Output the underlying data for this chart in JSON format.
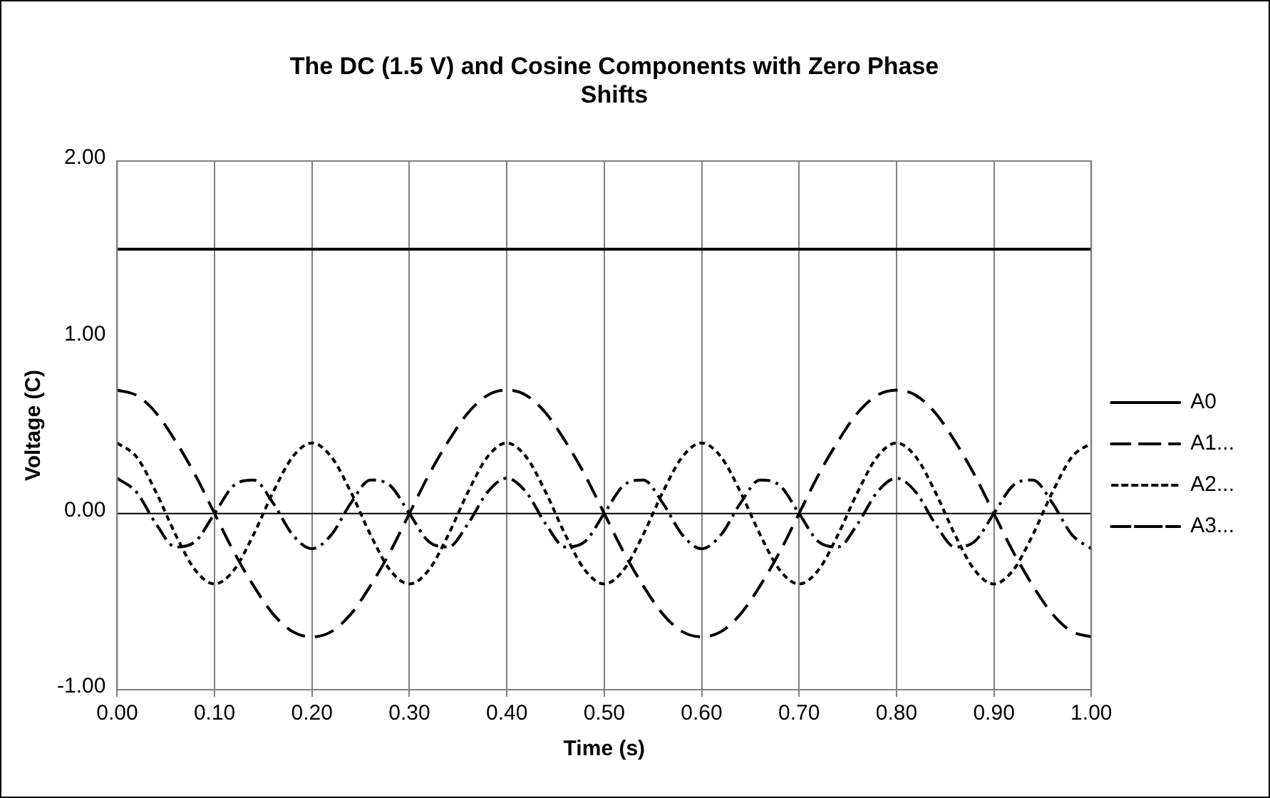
{
  "chart_data": {
    "type": "line",
    "title": "The DC (1.5 V) and Cosine Components with Zero Phase Shifts",
    "xlabel": "Time (s)",
    "ylabel": "Voltage (C)",
    "x": [
      0,
      0.02,
      0.04,
      0.06,
      0.08,
      0.1,
      0.12,
      0.14,
      0.16,
      0.18,
      0.2,
      0.22,
      0.24,
      0.26,
      0.28,
      0.3,
      0.32,
      0.34,
      0.36,
      0.38,
      0.4,
      0.42,
      0.44,
      0.46,
      0.48,
      0.5,
      0.52,
      0.54,
      0.56,
      0.58,
      0.6,
      0.62,
      0.64,
      0.66,
      0.68,
      0.7,
      0.72,
      0.74,
      0.76,
      0.78,
      0.8,
      0.82,
      0.84,
      0.86,
      0.88,
      0.9,
      0.92,
      0.94,
      0.96,
      0.98,
      1
    ],
    "series": [
      {
        "name": "A0",
        "color": "#000000",
        "line_style": "solid",
        "values": [
          1.5,
          1.5,
          1.5,
          1.5,
          1.5,
          1.5,
          1.5,
          1.5,
          1.5,
          1.5,
          1.5,
          1.5,
          1.5,
          1.5,
          1.5,
          1.5,
          1.5,
          1.5,
          1.5,
          1.5,
          1.5,
          1.5,
          1.5,
          1.5,
          1.5,
          1.5,
          1.5,
          1.5,
          1.5,
          1.5,
          1.5,
          1.5,
          1.5,
          1.5,
          1.5,
          1.5,
          1.5,
          1.5,
          1.5,
          1.5,
          1.5,
          1.5,
          1.5,
          1.5,
          1.5,
          1.5,
          1.5,
          1.5,
          1.5,
          1.5,
          1.5
        ]
      },
      {
        "name": "A1...",
        "color": "#000000",
        "line_style": "dashed",
        "values": [
          0.7,
          0.67,
          0.57,
          0.41,
          0.22,
          0,
          -0.22,
          -0.41,
          -0.57,
          -0.67,
          -0.7,
          -0.67,
          -0.57,
          -0.41,
          -0.22,
          0,
          0.22,
          0.41,
          0.57,
          0.67,
          0.7,
          0.67,
          0.57,
          0.41,
          0.22,
          0,
          -0.22,
          -0.41,
          -0.57,
          -0.67,
          -0.7,
          -0.67,
          -0.57,
          -0.41,
          -0.22,
          0,
          0.22,
          0.41,
          0.57,
          0.67,
          0.7,
          0.67,
          0.57,
          0.41,
          0.22,
          0,
          -0.22,
          -0.41,
          -0.57,
          -0.67,
          -0.7
        ]
      },
      {
        "name": "A2...",
        "color": "#000000",
        "line_style": "dotted",
        "values": [
          0.4,
          0.32,
          0.12,
          -0.12,
          -0.32,
          -0.4,
          -0.32,
          -0.12,
          0.12,
          0.32,
          0.4,
          0.32,
          0.12,
          -0.12,
          -0.32,
          -0.4,
          -0.32,
          -0.12,
          0.12,
          0.32,
          0.4,
          0.32,
          0.12,
          -0.12,
          -0.32,
          -0.4,
          -0.32,
          -0.12,
          0.12,
          0.32,
          0.4,
          0.32,
          0.12,
          -0.12,
          -0.32,
          -0.4,
          -0.32,
          -0.12,
          0.12,
          0.32,
          0.4,
          0.32,
          0.12,
          -0.12,
          -0.32,
          -0.4,
          -0.32,
          -0.12,
          0.12,
          0.32,
          0.4
        ]
      },
      {
        "name": "A3...",
        "color": "#000000",
        "line_style": "dashdot",
        "values": [
          0.2,
          0.12,
          -0.06,
          -0.19,
          -0.16,
          0,
          0.16,
          0.19,
          0.06,
          -0.12,
          -0.2,
          -0.12,
          0.06,
          0.19,
          0.16,
          0,
          -0.16,
          -0.19,
          -0.06,
          0.12,
          0.2,
          0.12,
          -0.06,
          -0.19,
          -0.16,
          0,
          0.16,
          0.19,
          0.06,
          -0.12,
          -0.2,
          -0.12,
          0.06,
          0.19,
          0.16,
          0,
          -0.16,
          -0.19,
          -0.06,
          0.12,
          0.2,
          0.12,
          -0.06,
          -0.19,
          -0.16,
          0,
          0.16,
          0.19,
          0.06,
          -0.12,
          -0.2
        ]
      }
    ],
    "xlim": [
      0,
      1
    ],
    "xticks": [
      {
        "value": 0,
        "label": "0.00"
      },
      {
        "value": 0.1,
        "label": "0.10"
      },
      {
        "value": 0.2,
        "label": "0.20"
      },
      {
        "value": 0.3,
        "label": "0.30"
      },
      {
        "value": 0.4,
        "label": "0.40"
      },
      {
        "value": 0.5,
        "label": "0.50"
      },
      {
        "value": 0.6,
        "label": "0.60"
      },
      {
        "value": 0.7,
        "label": "0.70"
      },
      {
        "value": 0.8,
        "label": "0.80"
      },
      {
        "value": 0.9,
        "label": "0.90"
      },
      {
        "value": 1,
        "label": "1.00"
      }
    ],
    "ylim": [
      -1,
      2
    ],
    "yticks": [
      {
        "value": -1,
        "label": "-1.00"
      },
      {
        "value": 0,
        "label": "0.00"
      },
      {
        "value": 1,
        "label": "1.00"
      },
      {
        "value": 2,
        "label": "2.00"
      }
    ],
    "ref_lines": [
      {
        "axis": "y",
        "value": 0
      }
    ],
    "grid": "x",
    "legend": "right",
    "marker": "none"
  }
}
